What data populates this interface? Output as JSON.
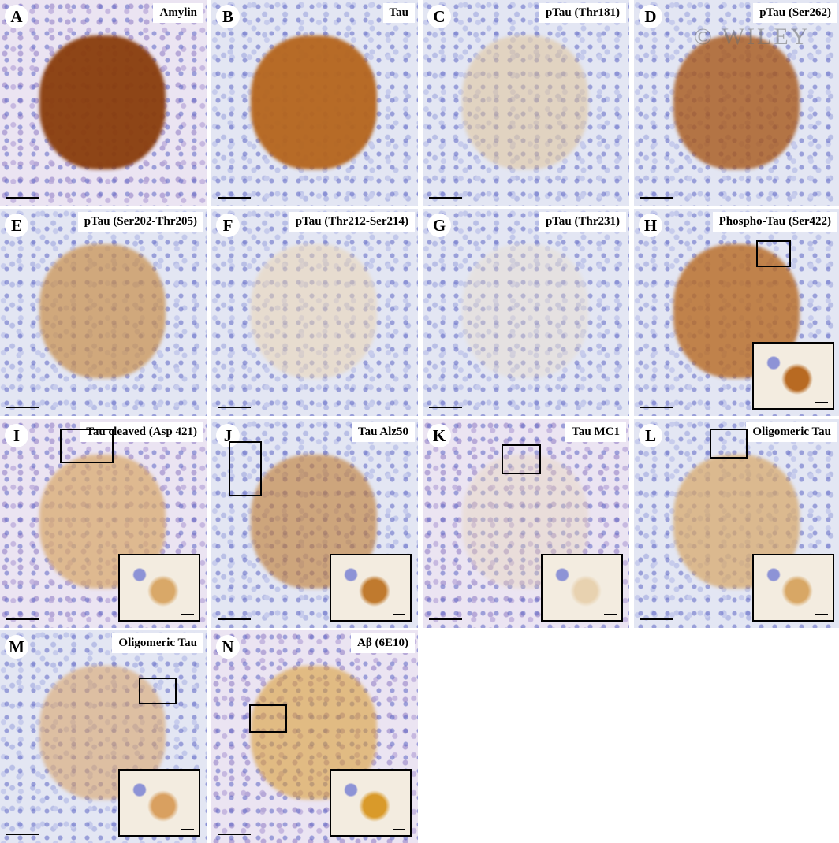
{
  "figure": {
    "watermark": "© WILEY",
    "panels": [
      {
        "letter": "A",
        "title": "Amylin",
        "stain_color": "#8a3d0c",
        "background": "purple",
        "stain_intensity": "strong",
        "inset": false
      },
      {
        "letter": "B",
        "title": "Tau",
        "stain_color": "#b5651d",
        "background": "blue",
        "stain_intensity": "strong",
        "inset": false
      },
      {
        "letter": "C",
        "title": "pTau (Thr181)",
        "stain_color": "#e0c190",
        "background": "blue",
        "stain_intensity": "light",
        "inset": false
      },
      {
        "letter": "D",
        "title": "pTau (Ser262)",
        "stain_color": "#a8581a",
        "background": "blue",
        "stain_intensity": "patchy",
        "inset": false
      },
      {
        "letter": "E",
        "title": "pTau (Ser202-Thr205)",
        "stain_color": "#c98f4a",
        "background": "blue",
        "stain_intensity": "moderate",
        "inset": false
      },
      {
        "letter": "F",
        "title": "pTau (Thr212-Ser214)",
        "stain_color": "#ebd3ad",
        "background": "blue",
        "stain_intensity": "light",
        "inset": false
      },
      {
        "letter": "G",
        "title": "pTau (Thr231)",
        "stain_color": "#eadac0",
        "background": "blue",
        "stain_intensity": "faint",
        "inset": false
      },
      {
        "letter": "H",
        "title": "Phospho-Tau (Ser422)",
        "stain_color": "#b86a22",
        "background": "blue",
        "stain_intensity": "patchy",
        "inset": true
      },
      {
        "letter": "I",
        "title": "Tau cleaved (Asp 421)",
        "stain_color": "#d9a868",
        "background": "purple",
        "stain_intensity": "moderate",
        "inset": true
      },
      {
        "letter": "J",
        "title": "Tau Alz50",
        "stain_color": "#c07a2e",
        "background": "blue",
        "stain_intensity": "scattered",
        "inset": true
      },
      {
        "letter": "K",
        "title": "Tau MC1",
        "stain_color": "#e8d2b0",
        "background": "purple",
        "stain_intensity": "faint",
        "inset": true
      },
      {
        "letter": "L",
        "title": "Oligomeric Tau",
        "stain_color": "#d8a765",
        "background": "blue",
        "stain_intensity": "moderate",
        "inset": true
      },
      {
        "letter": "M",
        "title": "Oligomeric Tau",
        "stain_color": "#d9a060",
        "background": "blue",
        "stain_intensity": "granular",
        "inset": true
      },
      {
        "letter": "N",
        "title": "Aβ (6E10)",
        "stain_color": "#d99a2a",
        "background": "purple",
        "stain_intensity": "granular",
        "inset": true
      }
    ]
  }
}
